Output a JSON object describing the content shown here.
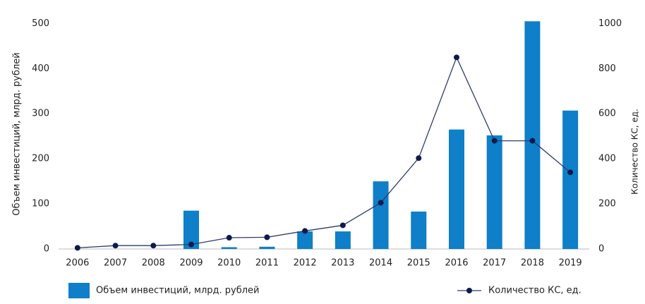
{
  "chart_data": {
    "type": "bar_line",
    "categories": [
      "2006",
      "2007",
      "2008",
      "2009",
      "2010",
      "2011",
      "2012",
      "2013",
      "2014",
      "2015",
      "2016",
      "2017",
      "2018",
      "2019"
    ],
    "series": [
      {
        "name": "Объем инвестиций, млрд. рублей",
        "type": "bar",
        "color": "#0e7fc8",
        "values": [
          0,
          0,
          0,
          85,
          4,
          5,
          39,
          39,
          150,
          83,
          265,
          252,
          505,
          307
        ]
      },
      {
        "name": "Количество КС, ед.",
        "type": "line",
        "axis": "y2",
        "color": "#2e3c6e",
        "values": [
          5,
          15,
          15,
          20,
          50,
          52,
          80,
          105,
          205,
          403,
          850,
          480,
          480,
          340
        ]
      }
    ],
    "ylabel": "Объем инвестиций, млрд. рублей",
    "y2label": "Количество КС, ед.",
    "ylim": [
      0,
      510
    ],
    "yticks": [
      0,
      100,
      200,
      300,
      400,
      500
    ],
    "y2lim": [
      0,
      1020
    ],
    "y2ticks": [
      0,
      200,
      400,
      600,
      800,
      1000
    ],
    "grid": false
  }
}
